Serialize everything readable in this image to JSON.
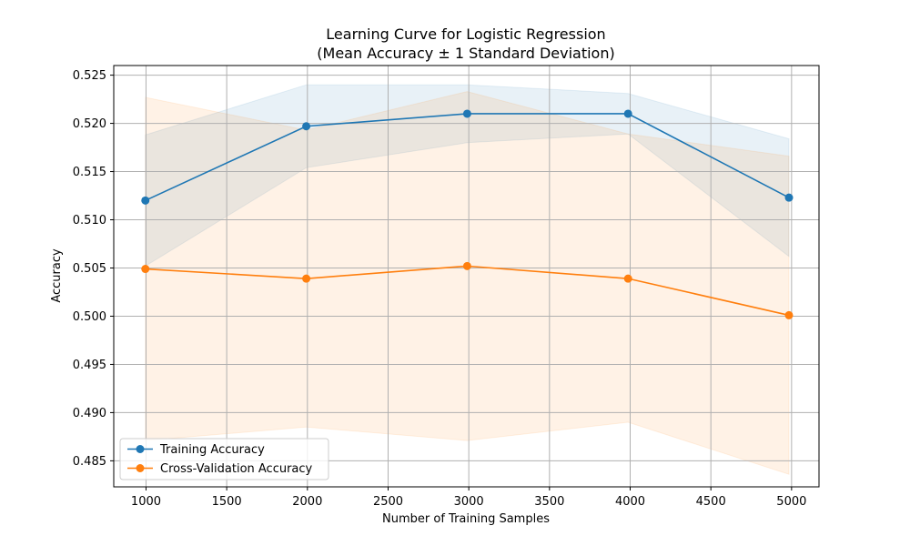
{
  "chart_data": {
    "type": "line",
    "title_line1": "Learning Curve for Logistic Regression",
    "title_line2": "(Mean Accuracy ± 1 Standard Deviation)",
    "xlabel": "Number of Training Samples",
    "ylabel": "Accuracy",
    "xlim": [
      800,
      5170
    ],
    "ylim": [
      0.4823,
      0.526
    ],
    "x_ticks": [
      1000,
      1500,
      2000,
      2500,
      3000,
      3500,
      4000,
      4500,
      5000
    ],
    "x_tick_labels": [
      "1000",
      "1500",
      "2000",
      "2500",
      "3000",
      "3500",
      "4000",
      "4500",
      "5000"
    ],
    "y_ticks": [
      0.485,
      0.49,
      0.495,
      0.5,
      0.505,
      0.51,
      0.515,
      0.52,
      0.525
    ],
    "y_tick_labels": [
      "0.485",
      "0.490",
      "0.495",
      "0.500",
      "0.505",
      "0.510",
      "0.515",
      "0.520",
      "0.525"
    ],
    "grid": true,
    "legend_position": "lower-left",
    "x": [
      996,
      1993,
      2990,
      3987,
      4984
    ],
    "series": [
      {
        "name": "Training Accuracy",
        "color": "#1f77b4",
        "values": [
          0.512,
          0.5197,
          0.521,
          0.521,
          0.5123
        ],
        "std_upper": [
          0.5188,
          0.524,
          0.524,
          0.5231,
          0.5184
        ],
        "std_lower": [
          0.5052,
          0.5154,
          0.518,
          0.5189,
          0.5062
        ]
      },
      {
        "name": "Cross-Validation Accuracy",
        "color": "#ff7f0e",
        "values": [
          0.5049,
          0.5039,
          0.5052,
          0.5039,
          0.5001
        ],
        "std_upper": [
          0.5227,
          0.5193,
          0.5233,
          0.5189,
          0.5166
        ],
        "std_lower": [
          0.4871,
          0.4885,
          0.4871,
          0.489,
          0.4836
        ]
      }
    ]
  }
}
